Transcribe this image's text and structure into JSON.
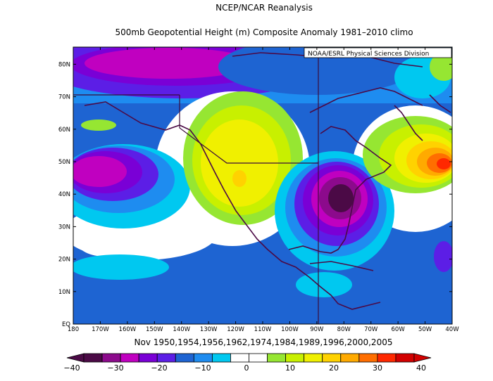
{
  "title_line1": "NCEP/NCAR Reanalysis",
  "title_line2": "500mb Geopotential Height (m) Composite Anomaly 1981–2010 climo",
  "credit": "NOAA/ESRL Physical Sciences Division",
  "period_label": "Nov 1950,1954,1956,1962,1974,1984,1989,1996,2000,2005",
  "lon_ticks": [
    "180",
    "170W",
    "160W",
    "150W",
    "140W",
    "130W",
    "120W",
    "110W",
    "100W",
    "90W",
    "80W",
    "70W",
    "60W",
    "50W",
    "40W"
  ],
  "lat_ticks": [
    "EQ",
    "10N",
    "20N",
    "30N",
    "40N",
    "50N",
    "60N",
    "70N",
    "80N"
  ],
  "colorbar": {
    "labels": [
      "−40",
      "−30",
      "−20",
      "−10",
      "0",
      "10",
      "20",
      "30",
      "40"
    ],
    "colors": [
      "#4b0a46",
      "#8c0a8c",
      "#c000c0",
      "#7a00d6",
      "#5c1ee6",
      "#1e64d2",
      "#1e8cf0",
      "#00c8f0",
      "#ffffff",
      "#ffffff",
      "#96e632",
      "#c8f000",
      "#f0f000",
      "#ffd200",
      "#ffaa00",
      "#ff6e00",
      "#ff2800",
      "#d20000"
    ]
  },
  "anomaly_features": [
    {
      "kind": "negative",
      "lon": -165,
      "lat": 82,
      "value": -30
    },
    {
      "kind": "negative",
      "lon": -170,
      "lat": 47,
      "value": -30
    },
    {
      "kind": "positive",
      "lon": -120,
      "lat": 46,
      "value": 30
    },
    {
      "kind": "negative",
      "lon": -82,
      "lat": 39,
      "value": -40
    },
    {
      "kind": "positive",
      "lon": -45,
      "lat": 49,
      "value": 40
    }
  ]
}
